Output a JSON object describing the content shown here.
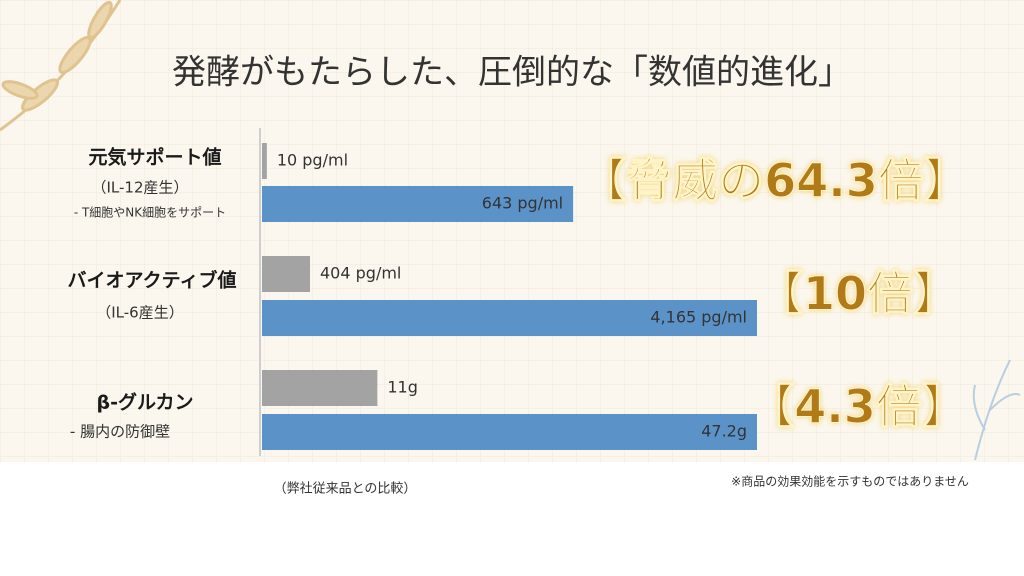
{
  "title": "発酵がもたらした、圧倒的な「数値的進化」",
  "chart_data": [
    {
      "type": "bar",
      "label": "元気サポート値",
      "sublabel": "（IL-12産生）",
      "note": "- T細胞やNK細胞をサポート",
      "values": [
        10,
        643
      ],
      "value_labels": [
        "10 pg/ml",
        "643 pg/ml"
      ],
      "colors": [
        "#a3a3a3",
        "#5b93c9"
      ],
      "xlim": [
        0,
        1023
      ],
      "ratio": "【脅威の64.3倍】"
    },
    {
      "type": "bar",
      "label": "バイオアクティブ値",
      "sublabel": "（IL-6産生）",
      "values": [
        404,
        4165
      ],
      "value_labels": [
        "404 pg/ml",
        "4,165 pg/ml"
      ],
      "colors": [
        "#a3a3a3",
        "#5b93c9"
      ],
      "xlim": [
        0,
        4165
      ],
      "ratio": "【10倍】"
    },
    {
      "type": "bar",
      "label": "β-グルカン",
      "note": "- 腸内の防御壁",
      "values": [
        11,
        47.2
      ],
      "value_labels": [
        "11g",
        "47.2g"
      ],
      "colors": [
        "#a3a3a3",
        "#5b93c9"
      ],
      "xlim": [
        0,
        47.2
      ],
      "ratio": "【4.3倍】"
    }
  ],
  "footnote_left": "（弊社従来品との比較）",
  "footnote_right": "※商品の効果効能を示すものではありません"
}
